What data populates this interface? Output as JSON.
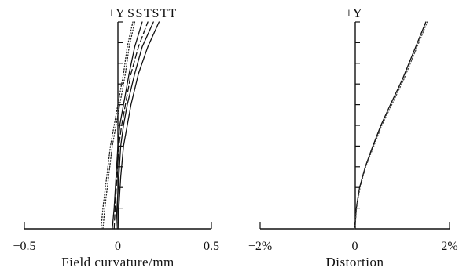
{
  "chart_data": [
    {
      "type": "line",
      "xlabel": "Field curvature/mm",
      "ylabel": "+Y",
      "curve_labels": [
        "S",
        "S",
        "T",
        "S",
        "T",
        "T"
      ],
      "xlim": [
        -0.5,
        0.5
      ],
      "ylim": [
        0,
        1
      ],
      "xticks": [
        -0.5,
        0,
        0.5
      ],
      "xtick_labels": [
        "−0.5",
        "0",
        "0.5"
      ],
      "yticks": [
        0.1,
        0.2,
        0.3,
        0.4,
        0.5,
        0.6,
        0.7,
        0.8,
        0.9,
        1.0
      ],
      "grid": false,
      "series": [
        {
          "style": "dotted",
          "color": "#222222",
          "x": [
            -0.08,
            -0.07,
            -0.05,
            -0.03,
            -0.01,
            0.01,
            0.04,
            0.06,
            0.09
          ],
          "y": [
            0,
            0.1,
            0.25,
            0.4,
            0.5,
            0.6,
            0.75,
            0.88,
            1.0
          ]
        },
        {
          "style": "dotted",
          "color": "#222222",
          "x": [
            -0.09,
            -0.08,
            -0.06,
            -0.04,
            -0.02,
            0.0,
            0.03,
            0.05,
            0.08
          ],
          "y": [
            0,
            0.1,
            0.25,
            0.4,
            0.5,
            0.6,
            0.75,
            0.88,
            1.0
          ]
        },
        {
          "style": "solid",
          "color": "#111111",
          "x": [
            -0.03,
            -0.02,
            -0.01,
            0.0,
            0.01,
            0.03,
            0.06,
            0.09,
            0.13
          ],
          "y": [
            0,
            0.1,
            0.25,
            0.4,
            0.5,
            0.6,
            0.75,
            0.88,
            1.0
          ]
        },
        {
          "style": "dashed",
          "color": "#111111",
          "x": [
            -0.02,
            -0.015,
            -0.005,
            0.005,
            0.02,
            0.04,
            0.07,
            0.11,
            0.16
          ],
          "y": [
            0,
            0.1,
            0.25,
            0.4,
            0.5,
            0.6,
            0.75,
            0.88,
            1.0
          ]
        },
        {
          "style": "solid",
          "color": "#111111",
          "x": [
            -0.01,
            -0.005,
            0.005,
            0.015,
            0.03,
            0.05,
            0.09,
            0.13,
            0.19
          ],
          "y": [
            0,
            0.1,
            0.25,
            0.4,
            0.5,
            0.6,
            0.75,
            0.88,
            1.0
          ]
        },
        {
          "style": "solid",
          "color": "#111111",
          "x": [
            0.0,
            0.005,
            0.015,
            0.03,
            0.05,
            0.07,
            0.11,
            0.16,
            0.22
          ],
          "y": [
            0,
            0.1,
            0.25,
            0.4,
            0.5,
            0.6,
            0.75,
            0.88,
            1.0
          ]
        }
      ]
    },
    {
      "type": "line",
      "xlabel": "Distortion",
      "ylabel": "+Y",
      "xlim": [
        -2,
        2
      ],
      "ylim": [
        0,
        1
      ],
      "xticks": [
        -2,
        0,
        2
      ],
      "xtick_labels": [
        "−2%",
        "0",
        "2%"
      ],
      "yticks": [
        0.1,
        0.2,
        0.3,
        0.4,
        0.5,
        0.6,
        0.7,
        0.8,
        0.9,
        1.0
      ],
      "grid": false,
      "series": [
        {
          "style": "solid",
          "color": "#111111",
          "x": [
            0,
            0.03,
            0.1,
            0.22,
            0.38,
            0.55,
            0.75,
            1.0,
            1.25,
            1.5
          ],
          "y": [
            0,
            0.1,
            0.2,
            0.3,
            0.4,
            0.5,
            0.6,
            0.72,
            0.86,
            1.0
          ]
        },
        {
          "style": "dotted",
          "color": "#444444",
          "x": [
            0,
            0.035,
            0.11,
            0.23,
            0.4,
            0.57,
            0.78,
            1.03,
            1.28,
            1.53
          ],
          "y": [
            0,
            0.1,
            0.2,
            0.3,
            0.4,
            0.5,
            0.6,
            0.72,
            0.86,
            1.0
          ]
        }
      ]
    }
  ]
}
